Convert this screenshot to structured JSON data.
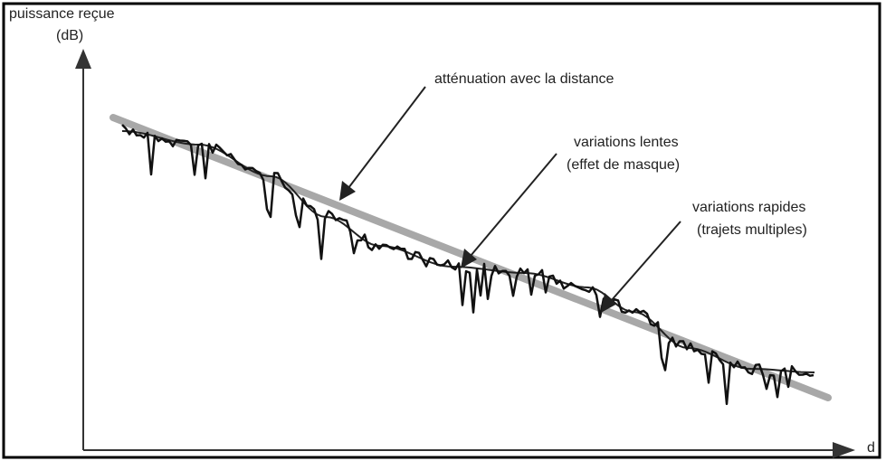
{
  "axes": {
    "y_label": "puissance reçue",
    "y_unit": "(dB)",
    "x_label": "d"
  },
  "annotations": {
    "attenuation": "atténuation avec la distance",
    "slow_line1": "variations lentes",
    "slow_line2": "(effet de masque)",
    "fast_line1": "variations rapides",
    "fast_line2": "(trajets multiples)"
  }
}
